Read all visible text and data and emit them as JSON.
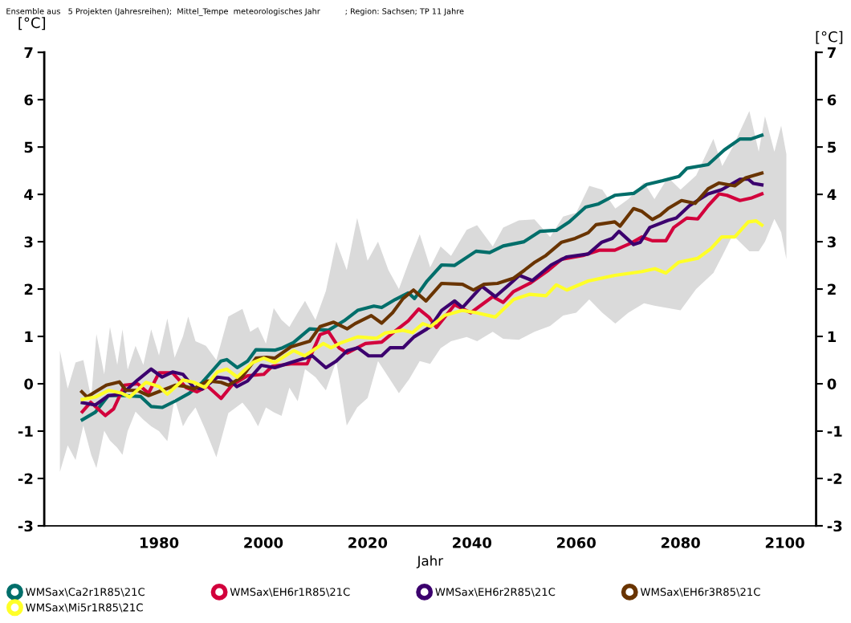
{
  "chart_data": {
    "type": "line",
    "title": "Ensemble aus   5 Projekten (Jahresreihen);  Mittel_Tempe  meteorologisches Jahr          ; Region: Sachsen; TP 11 Jahre",
    "xlabel": "Jahr",
    "ylabel": "[°C]",
    "y2label": "[°C]",
    "xlim": [
      1958,
      2106
    ],
    "xticks": [
      1980,
      2000,
      2020,
      2040,
      2060,
      2080,
      2100
    ],
    "ylim": [
      -3,
      7
    ],
    "yticks": [
      -3,
      -2,
      -1,
      0,
      1,
      2,
      3,
      4,
      5,
      6,
      7
    ],
    "y2lim": [
      -3,
      7
    ],
    "y2ticks": [
      -3,
      -2,
      -1,
      0,
      1,
      2,
      3,
      4,
      5,
      6,
      7
    ],
    "grid": false,
    "legend": "bottom",
    "marker": "none",
    "line_style": "solid",
    "series": [
      {
        "color": "#dadada",
        "x": [
          1961,
          1962.5,
          1964,
          1965.5,
          1967,
          1968,
          1969.5,
          1970.6,
          1972,
          1973,
          1974,
          1975.5,
          1977,
          1978.5,
          1980,
          1981.6,
          1983,
          1984.6,
          1985.6,
          1987,
          1989,
          1991,
          1993.3,
          1996,
          1997.5,
          1999,
          2000.5,
          2002,
          2003.5,
          2005,
          2006.6,
          2008,
          2010,
          2012,
          2014,
          2016,
          2018,
          2020,
          2022,
          2024,
          2026,
          2028,
          2030,
          2032,
          2034,
          2036,
          2039,
          2041,
          2044,
          2046,
          2049,
          2052,
          2055,
          2057.5,
          2060,
          2062.5,
          2065,
          2067.5,
          2070,
          2073,
          2075,
          2077.6,
          2080,
          2083,
          2086.3,
          2088,
          2090,
          2093.2,
          2095,
          2096.2,
          2098,
          2099.3,
          2100.3
        ],
        "values": [
          null,
          null,
          null,
          null,
          null,
          null,
          null,
          null,
          null,
          null,
          null,
          null,
          null,
          null,
          null,
          null,
          null,
          null,
          null,
          null,
          null,
          null,
          null,
          null,
          null,
          null,
          null,
          null,
          null,
          null,
          null,
          null,
          null,
          null,
          null,
          null,
          null,
          null,
          null,
          null,
          null,
          null,
          null,
          null,
          null,
          null,
          null,
          null,
          null,
          null,
          null,
          null,
          null,
          null,
          null,
          null,
          null,
          null,
          null,
          null,
          null,
          null,
          null,
          null,
          null,
          null,
          null,
          null,
          null,
          null,
          null,
          null,
          null
        ],
        "upper": [
          0.7,
          -0.1,
          0.45,
          0.5,
          -0.3,
          1.05,
          0.2,
          1.2,
          0.4,
          1.15,
          0.3,
          0.8,
          0.4,
          1.15,
          0.6,
          1.38,
          0.55,
          1.0,
          1.42,
          0.9,
          0.8,
          0.5,
          1.42,
          1.58,
          1.1,
          1.2,
          0.85,
          1.6,
          1.35,
          1.2,
          1.5,
          1.75,
          1.35,
          1.96,
          3.0,
          2.4,
          3.5,
          2.6,
          3.0,
          2.4,
          2.0,
          2.6,
          3.16,
          2.46,
          2.9,
          2.7,
          3.25,
          3.35,
          2.9,
          3.3,
          3.45,
          3.47,
          3.1,
          3.53,
          3.61,
          4.18,
          4.1,
          3.7,
          3.9,
          4.25,
          3.9,
          4.36,
          4.1,
          4.4,
          5.17,
          4.6,
          5.0,
          5.76,
          4.9,
          5.65,
          4.9,
          5.45,
          4.85
        ],
        "lower": [
          -1.86,
          -1.3,
          -1.61,
          -0.88,
          -1.5,
          -1.78,
          -0.99,
          -1.2,
          -1.35,
          -1.5,
          -1.0,
          -0.59,
          -0.76,
          -0.9,
          -1.0,
          -1.21,
          -0.31,
          -0.9,
          -0.7,
          -0.5,
          -1.0,
          -1.55,
          -0.62,
          -0.4,
          -0.6,
          -0.9,
          -0.5,
          -0.6,
          -0.68,
          -0.08,
          -0.37,
          0.31,
          0.14,
          -0.14,
          0.48,
          -0.88,
          -0.5,
          -0.3,
          0.48,
          0.14,
          -0.2,
          0.1,
          0.48,
          0.42,
          0.75,
          0.9,
          0.99,
          0.9,
          1.1,
          0.95,
          0.93,
          1.1,
          1.22,
          1.44,
          1.5,
          1.78,
          1.5,
          1.27,
          1.5,
          1.7,
          1.65,
          1.6,
          1.55,
          2.0,
          2.34,
          2.7,
          3.14,
          2.8,
          2.8,
          3.0,
          3.48,
          3.2,
          2.63
        ]
      },
      {
        "name": "WMSax\\Ca2r1R85\\21C",
        "color": "#006e6a",
        "x": [
          1965.3,
          1967.8,
          1970.3,
          1973.4,
          1976.5,
          1978.5,
          1980.6,
          1983.2,
          1985.8,
          1988.3,
          1991.9,
          1993,
          1995,
          1997,
          1998.6,
          2002.2,
          2003.7,
          2005.8,
          2008.9,
          2012.5,
          2015.5,
          2018.1,
          2021.2,
          2022.7,
          2025.3,
          2027.8,
          2029,
          2031.4,
          2034.2,
          2036.7,
          2040.8,
          2043.4,
          2046,
          2050,
          2053.1,
          2056.2,
          2058.7,
          2061.8,
          2064.3,
          2067.4,
          2071,
          2073.5,
          2076.6,
          2079.7,
          2081.2,
          2085.3,
          2088.4,
          2091.4,
          2093.5,
          2095.6
        ],
        "values": [
          -0.76,
          -0.6,
          -0.25,
          -0.25,
          -0.27,
          -0.48,
          -0.5,
          -0.36,
          -0.2,
          0.03,
          0.48,
          0.51,
          0.34,
          0.48,
          0.72,
          0.71,
          0.76,
          0.87,
          1.16,
          1.13,
          1.33,
          1.55,
          1.64,
          1.61,
          1.78,
          1.92,
          1.8,
          2.17,
          2.51,
          2.5,
          2.8,
          2.77,
          2.91,
          3.0,
          3.22,
          3.24,
          3.42,
          3.73,
          3.8,
          3.98,
          4.02,
          4.21,
          4.29,
          4.38,
          4.55,
          4.63,
          4.94,
          5.17,
          5.17,
          5.25
        ]
      },
      {
        "name": "WMSax\\EH6r1R85\\21C",
        "color": "#d2003c",
        "x": [
          1965.3,
          1966.9,
          1969.7,
          1971.3,
          1973.4,
          1975.9,
          1978,
          1980,
          1982.6,
          1985.2,
          1987.3,
          1989.3,
          1991.9,
          1994,
          1997,
          2000.1,
          2001.7,
          2005.3,
          2008.4,
          2010.9,
          2012.5,
          2014.5,
          2016.1,
          2019.6,
          2022.7,
          2024.8,
          2027.8,
          2029.8,
          2031.8,
          2033.2,
          2036.7,
          2039.8,
          2041.9,
          2044,
          2046,
          2048,
          2051.1,
          2054.7,
          2057.2,
          2061.3,
          2064.4,
          2067.4,
          2070.5,
          2072.6,
          2074.6,
          2077.2,
          2078.7,
          2081.2,
          2083.3,
          2085.3,
          2087.4,
          2088.9,
          2091.4,
          2093.5,
          2095.6
        ],
        "values": [
          -0.59,
          -0.39,
          -0.67,
          -0.53,
          -0.03,
          0.0,
          -0.2,
          0.23,
          0.23,
          -0.08,
          -0.17,
          -0.05,
          -0.31,
          -0.03,
          0.17,
          0.2,
          0.37,
          0.42,
          0.42,
          1.04,
          1.1,
          0.76,
          0.65,
          0.85,
          0.88,
          1.07,
          1.33,
          1.58,
          1.4,
          1.19,
          1.67,
          1.5,
          1.67,
          1.84,
          1.72,
          1.95,
          2.12,
          2.4,
          2.63,
          2.71,
          2.82,
          2.82,
          2.97,
          3.1,
          3.02,
          3.02,
          3.3,
          3.5,
          3.48,
          3.76,
          4.01,
          3.98,
          3.87,
          3.92,
          4.01
        ]
      },
      {
        "name": "WMSax\\EH6r2R85\\21C",
        "color": "#3c006e",
        "x": [
          1965.3,
          1967.8,
          1970.3,
          1972.9,
          1975.9,
          1978.5,
          1980.6,
          1982.6,
          1984.6,
          1986.7,
          1988.3,
          1991.2,
          1993.3,
          1994.9,
          1997,
          1999.6,
          2002.2,
          2005.3,
          2009.4,
          2012,
          2014,
          2016.1,
          2018.1,
          2020.2,
          2022.7,
          2024.3,
          2026.8,
          2028.9,
          2031.4,
          2032.1,
          2034.2,
          2036.7,
          2038.2,
          2041.9,
          2044.5,
          2047,
          2049.1,
          2051.6,
          2055.2,
          2058.2,
          2062.3,
          2064.9,
          2066.9,
          2068.2,
          2071,
          2072.3,
          2074.1,
          2077.6,
          2079.2,
          2081.7,
          2085.3,
          2087.9,
          2091.4,
          2093,
          2094,
          2095.6
        ],
        "values": [
          -0.4,
          -0.45,
          -0.25,
          -0.22,
          0.08,
          0.31,
          0.14,
          0.25,
          0.2,
          -0.08,
          -0.11,
          0.14,
          0.11,
          -0.06,
          0.06,
          0.39,
          0.34,
          0.45,
          0.59,
          0.34,
          0.48,
          0.7,
          0.76,
          0.59,
          0.59,
          0.76,
          0.76,
          0.99,
          1.16,
          1.21,
          1.55,
          1.75,
          1.61,
          2.06,
          1.84,
          2.08,
          2.29,
          2.18,
          2.51,
          2.68,
          2.74,
          2.99,
          3.07,
          3.22,
          2.94,
          2.99,
          3.3,
          3.45,
          3.5,
          3.76,
          4.01,
          4.1,
          4.32,
          4.32,
          4.23,
          4.2
        ]
      },
      {
        "name": "WMSax\\EH6r3R85\\21C",
        "color": "#693400",
        "x": [
          1965.2,
          1966.2,
          1967.8,
          1969.9,
          1972.4,
          1973.7,
          1975.9,
          1978,
          1980.6,
          1983.2,
          1985.2,
          1986.7,
          1989.3,
          1991.9,
          1993.3,
          1995.9,
          1998.6,
          2000.6,
          2002.2,
          2005.3,
          2008.9,
          2010.9,
          2013.5,
          2016.1,
          2017.6,
          2020.7,
          2022.7,
          2024.8,
          2026.8,
          2028.8,
          2031.2,
          2034.2,
          2038.2,
          2040.3,
          2042.3,
          2044.9,
          2048,
          2050.1,
          2052.1,
          2054.2,
          2057.2,
          2059.8,
          2062.3,
          2063.8,
          2067.4,
          2068.4,
          2071,
          2072.6,
          2074.6,
          2076.1,
          2077.6,
          2080.2,
          2082.8,
          2085.3,
          2087.4,
          2090.4,
          2092.5,
          2095.6
        ],
        "values": [
          -0.17,
          -0.28,
          -0.17,
          -0.03,
          0.04,
          -0.14,
          -0.14,
          -0.25,
          -0.14,
          -0.03,
          -0.06,
          -0.11,
          0.06,
          0.03,
          -0.03,
          0.14,
          0.54,
          0.56,
          0.54,
          0.78,
          0.9,
          1.21,
          1.3,
          1.16,
          1.27,
          1.44,
          1.28,
          1.5,
          1.8,
          1.98,
          1.75,
          2.12,
          2.1,
          1.98,
          2.1,
          2.12,
          2.23,
          2.4,
          2.57,
          2.71,
          2.99,
          3.07,
          3.19,
          3.36,
          3.42,
          3.33,
          3.7,
          3.64,
          3.47,
          3.56,
          3.7,
          3.87,
          3.81,
          4.12,
          4.24,
          4.18,
          4.35,
          4.45
        ]
      },
      {
        "name": "WMSax\\Mi5r1R85\\21C",
        "color": "#ffff28",
        "x": [
          1965.3,
          1967.8,
          1970.3,
          1972.9,
          1974.4,
          1977.5,
          1980,
          1981.6,
          1984.6,
          1986.7,
          1988.8,
          1991.2,
          1993,
          1995,
          1998,
          2000.1,
          2002.2,
          2005.8,
          2007.9,
          2011.5,
          2013,
          2015,
          2018.1,
          2021.7,
          2023.3,
          2026.8,
          2028.6,
          2030.6,
          2032.1,
          2034.7,
          2038.2,
          2040.8,
          2044.5,
          2048,
          2051.1,
          2054.2,
          2056.2,
          2058.2,
          2062.3,
          2067.4,
          2072.6,
          2075.1,
          2077.2,
          2079.7,
          2083.3,
          2085.8,
          2087.9,
          2090.4,
          2093,
          2094.5,
          2095.6
        ],
        "values": [
          -0.33,
          -0.28,
          -0.14,
          -0.2,
          -0.28,
          0.03,
          -0.06,
          -0.22,
          0.08,
          0.03,
          -0.08,
          0.25,
          0.31,
          0.14,
          0.45,
          0.54,
          0.45,
          0.7,
          0.59,
          0.85,
          0.76,
          0.87,
          0.99,
          0.96,
          1.07,
          1.13,
          1.08,
          1.27,
          1.21,
          1.44,
          1.55,
          1.5,
          1.41,
          1.78,
          1.89,
          1.86,
          2.09,
          1.98,
          2.17,
          2.29,
          2.37,
          2.43,
          2.34,
          2.57,
          2.65,
          2.85,
          3.1,
          3.1,
          3.42,
          3.44,
          3.35
        ]
      }
    ]
  }
}
